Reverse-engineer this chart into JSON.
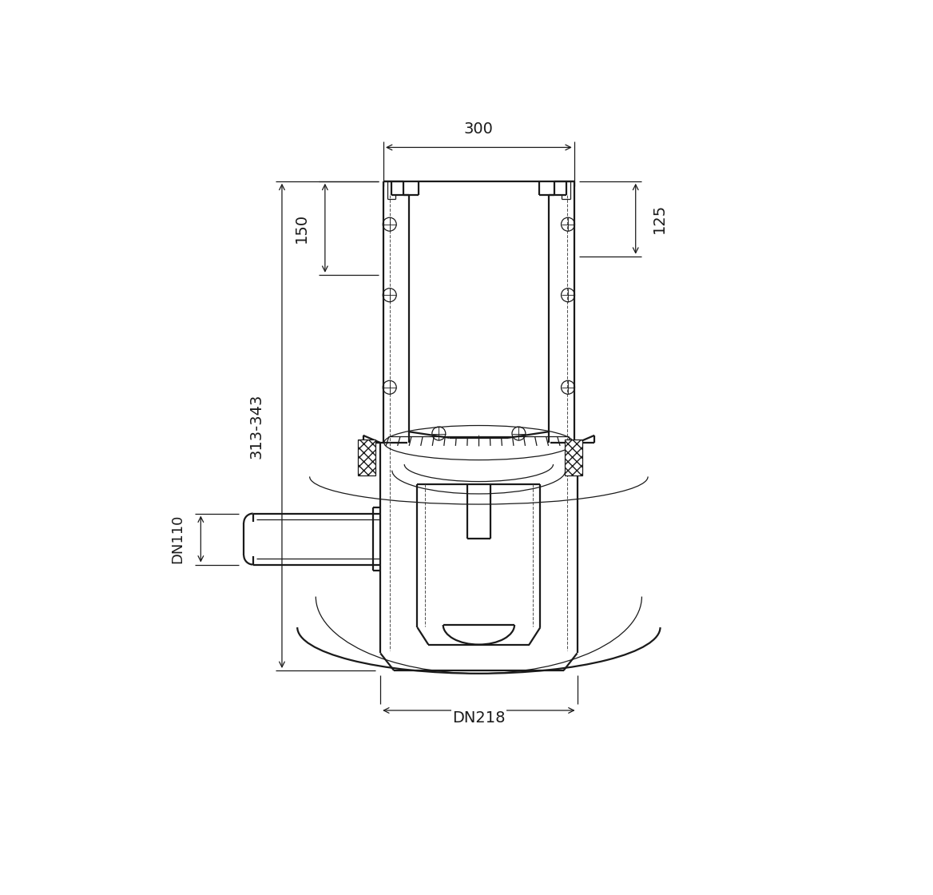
{
  "bg_color": "#ffffff",
  "lc": "#1a1a1a",
  "dc": "#555555",
  "dim_300": "300",
  "dim_150": "150",
  "dim_125": "125",
  "dim_313": "313-343",
  "dim_DN110": "DN110",
  "dim_DN218": "DN218",
  "lw_m": 1.6,
  "lw_n": 0.9,
  "lw_d": 0.75,
  "lw_dim": 0.9,
  "fs_dim": 14
}
